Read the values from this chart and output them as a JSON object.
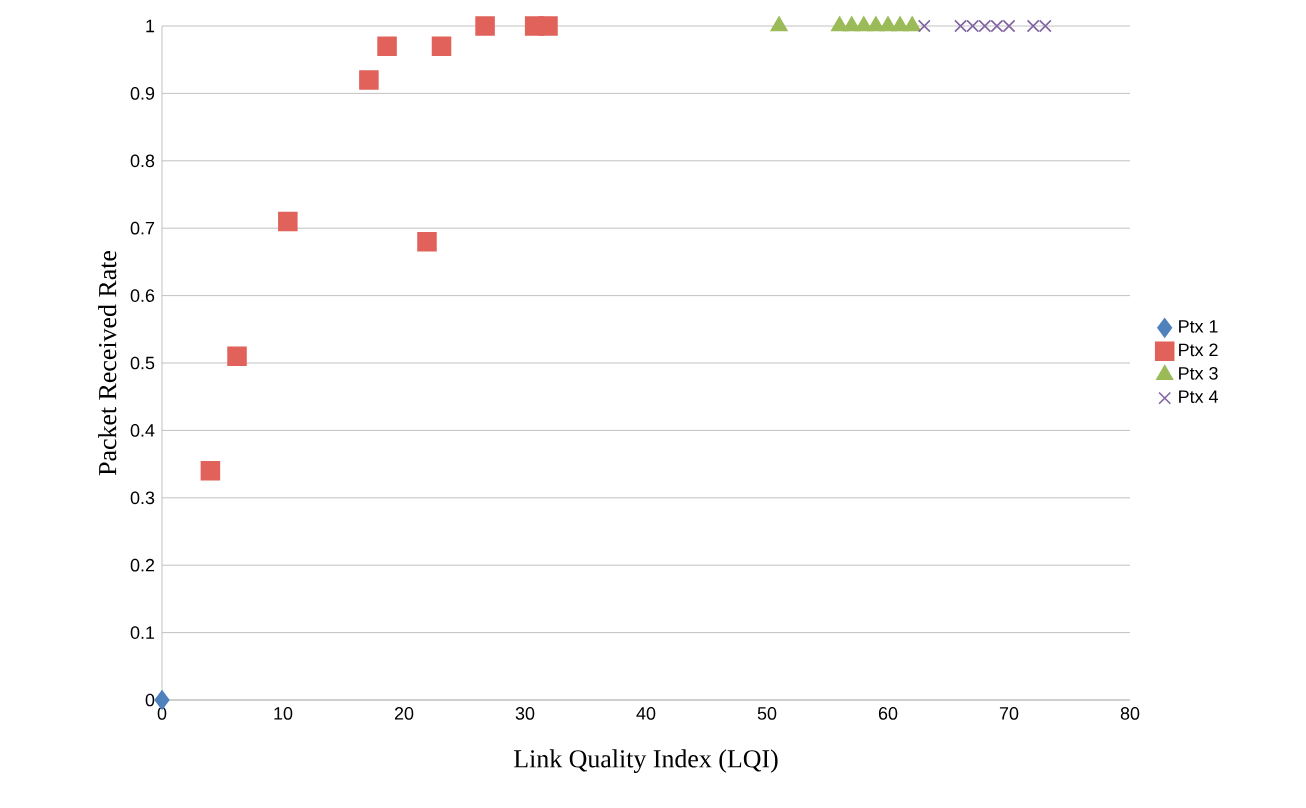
{
  "chart_data": {
    "type": "scatter",
    "xlabel": "Link Quality Index (LQI)",
    "ylabel": "Packet Received Rate",
    "xlim": [
      0,
      80
    ],
    "xticks": [
      0,
      10,
      20,
      30,
      40,
      50,
      60,
      70,
      80
    ],
    "ylim": [
      0,
      1
    ],
    "yticks": [
      0,
      0.1,
      0.2,
      0.3,
      0.4,
      0.5,
      0.6,
      0.7,
      0.8,
      0.9,
      1
    ],
    "grid": "y",
    "legend": "right",
    "series": [
      {
        "name": "Ptx 1",
        "color": "#4f81bd",
        "marker": "diamond",
        "x": [
          0
        ],
        "values": [
          0
        ]
      },
      {
        "name": "Ptx 2",
        "color": "#e0625a",
        "marker": "square",
        "x": [
          4,
          6.2,
          10.4,
          17.1,
          18.6,
          21.9,
          23.1,
          26.7,
          30.8,
          31.9
        ],
        "values": [
          0.34,
          0.51,
          0.71,
          0.92,
          0.97,
          0.68,
          0.97,
          1,
          1,
          1
        ]
      },
      {
        "name": "Ptx 3",
        "color": "#9bbb59",
        "marker": "triangle",
        "x": [
          51,
          56,
          57,
          58,
          59,
          60,
          61,
          62
        ],
        "values": [
          1,
          1,
          1,
          1,
          1,
          1,
          1,
          1
        ]
      },
      {
        "name": "Ptx 4",
        "color": "#8064a2",
        "marker": "cross",
        "x": [
          63,
          66,
          67,
          68,
          69,
          70,
          72,
          73
        ],
        "values": [
          1,
          1,
          1,
          1,
          1,
          1,
          1,
          1
        ]
      }
    ]
  }
}
